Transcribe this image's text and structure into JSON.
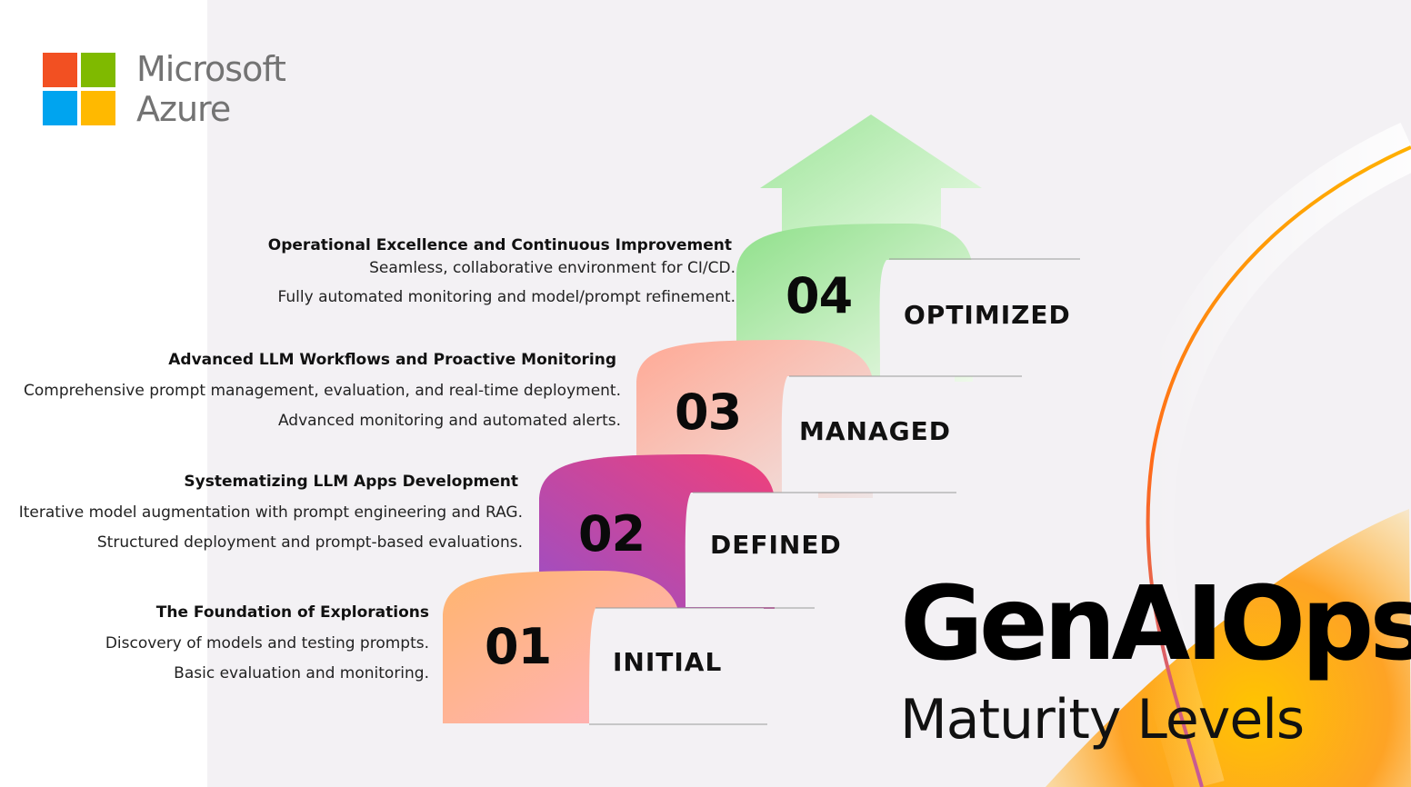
{
  "brand": {
    "line1": "Microsoft",
    "line2": "Azure",
    "logo_colors": [
      "#f25022",
      "#7fba00",
      "#00a4ef",
      "#ffb900"
    ]
  },
  "hero": {
    "title": "GenAIOps",
    "subtitle": "Maturity Levels"
  },
  "levels": [
    {
      "number": "01",
      "name": "INITIAL",
      "title": "The Foundation of Explorations",
      "lines": [
        "Discovery of models and testing prompts.",
        "Basic evaluation and monitoring."
      ],
      "colors": [
        "#ffb38a",
        "#ffb3b8"
      ]
    },
    {
      "number": "02",
      "name": "DEFINED",
      "title": "Systematizing LLM Apps Development",
      "lines": [
        "Iterative model augmentation with prompt engineering and RAG.",
        "Structured deployment and prompt-based evaluations."
      ],
      "colors": [
        "#e9408a",
        "#9b4fc4"
      ]
    },
    {
      "number": "03",
      "name": "MANAGED",
      "title": "Advanced LLM Workflows and Proactive Monitoring",
      "lines": [
        "Comprehensive prompt management, evaluation, and real-time deployment.",
        "Advanced monitoring and automated alerts."
      ],
      "colors": [
        "#ffab9a",
        "#f3e2dc"
      ]
    },
    {
      "number": "04",
      "name": "OPTIMIZED",
      "title": "Operational Excellence and Continuous Improvement",
      "lines": [
        "Seamless, collaborative environment for CI/CD.",
        "Fully automated monitoring and model/prompt refinement."
      ],
      "colors": [
        "#9ee59a",
        "#e8f8e4"
      ]
    }
  ]
}
